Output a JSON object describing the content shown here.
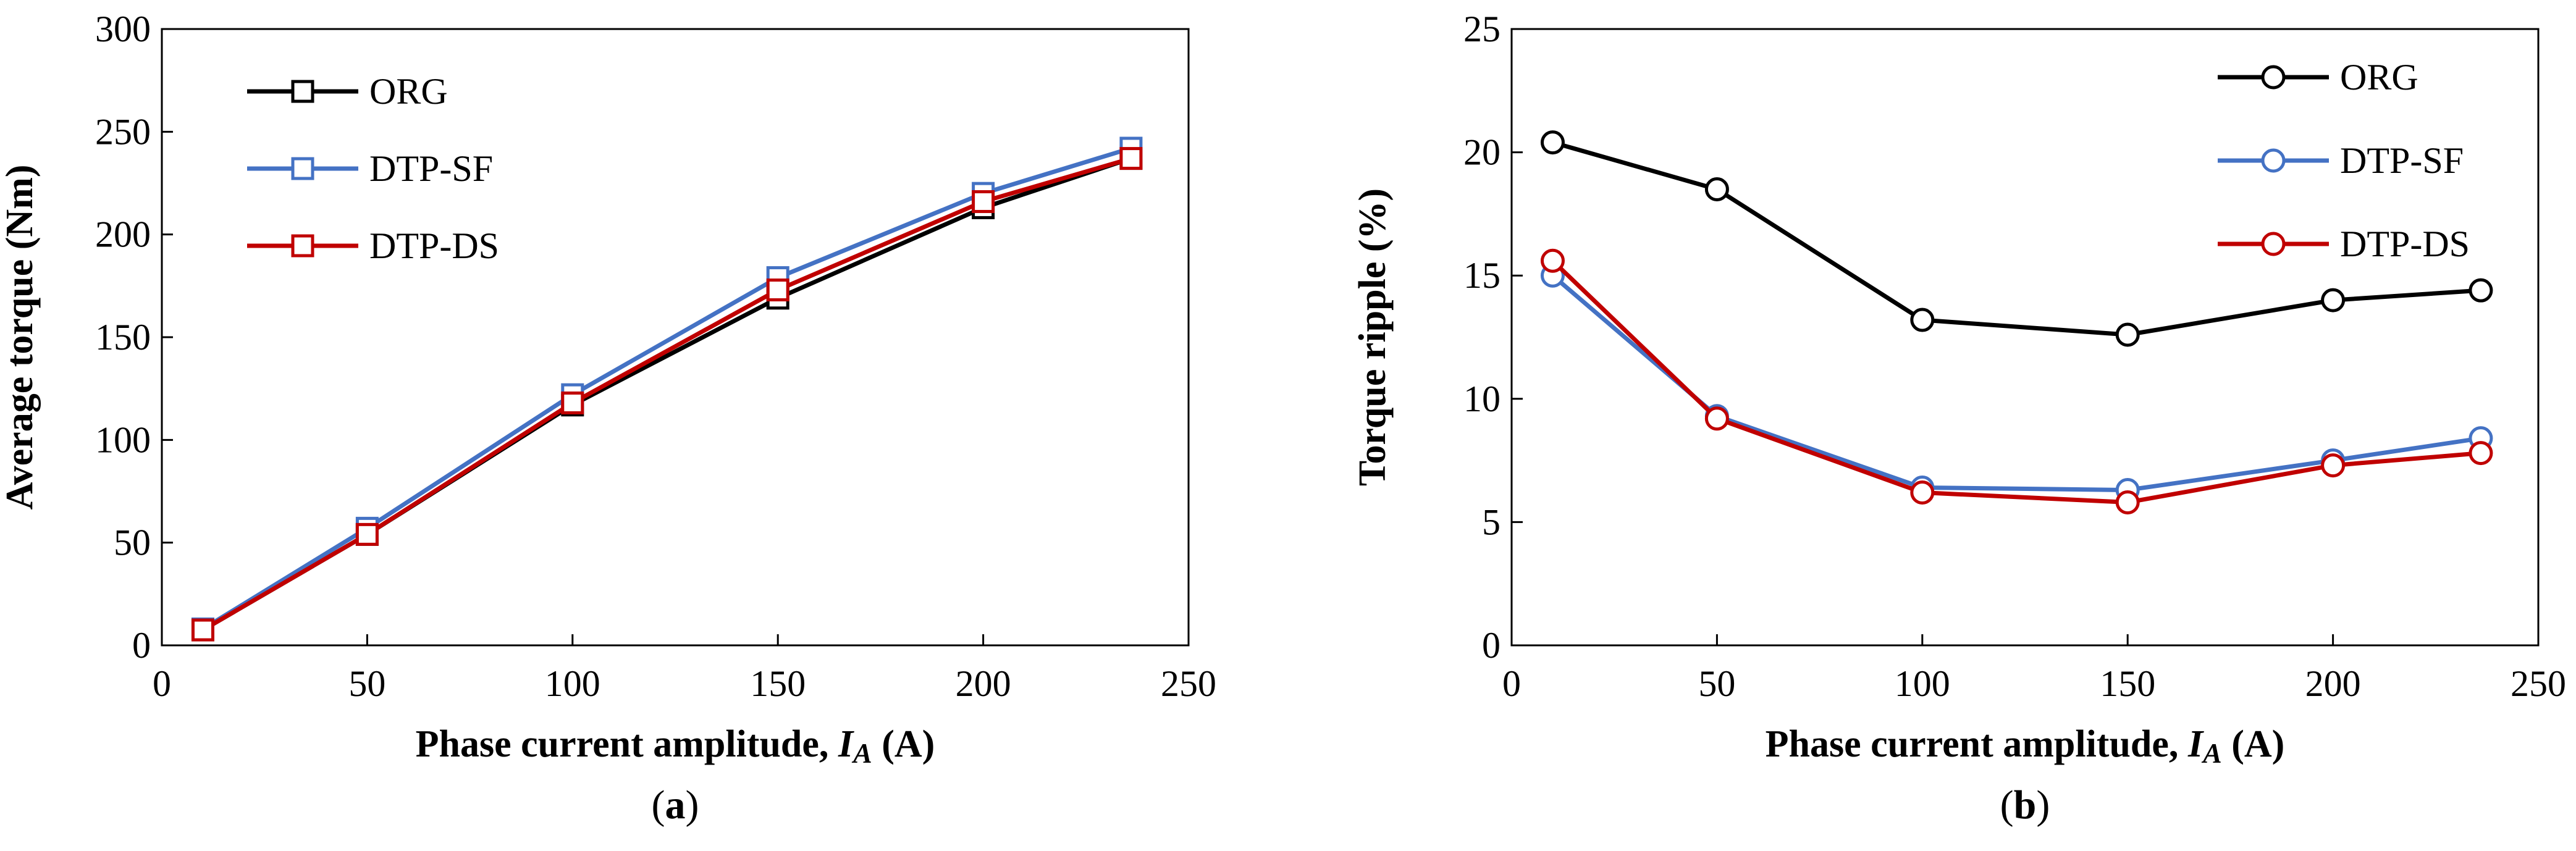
{
  "chart_data": [
    {
      "type": "line",
      "panel_label": "a",
      "title": "",
      "xlabel_prefix": "Phase current amplitude, ",
      "xlabel_var": "I",
      "xlabel_sub": "A",
      "xlabel_suffix": " (A)",
      "ylabel": "Average torque (Nm)",
      "xlim": [
        0,
        250
      ],
      "ylim": [
        0,
        300
      ],
      "xticks": [
        0,
        50,
        100,
        150,
        200,
        250
      ],
      "yticks": [
        0,
        50,
        100,
        150,
        200,
        250,
        300
      ],
      "grid": false,
      "legend_position": "top-left",
      "marker": "square",
      "x": [
        10,
        50,
        100,
        150,
        200,
        236
      ],
      "series": [
        {
          "name": "ORG",
          "color": "#000000",
          "values": [
            7.5,
            54,
            117,
            169,
            213,
            237
          ]
        },
        {
          "name": "DTP-SF",
          "color": "#4472C4",
          "values": [
            8,
            57,
            122,
            179,
            220,
            242
          ]
        },
        {
          "name": "DTP-DS",
          "color": "#C00000",
          "values": [
            7.5,
            54,
            118,
            173,
            216,
            237
          ]
        }
      ]
    },
    {
      "type": "line",
      "panel_label": "b",
      "title": "",
      "xlabel_prefix": "Phase current amplitude, ",
      "xlabel_var": "I",
      "xlabel_sub": "A",
      "xlabel_suffix": " (A)",
      "ylabel": "Torque ripple (%)",
      "xlim": [
        0,
        250
      ],
      "ylim": [
        0,
        25
      ],
      "xticks": [
        0,
        50,
        100,
        150,
        200,
        250
      ],
      "yticks": [
        0,
        5,
        10,
        15,
        20,
        25
      ],
      "grid": false,
      "legend_position": "top-right",
      "marker": "circle",
      "x": [
        10,
        50,
        100,
        150,
        200,
        236
      ],
      "series": [
        {
          "name": "ORG",
          "color": "#000000",
          "values": [
            20.4,
            18.5,
            13.2,
            12.6,
            14.0,
            14.4
          ]
        },
        {
          "name": "DTP-SF",
          "color": "#4472C4",
          "values": [
            15.0,
            9.3,
            6.4,
            6.3,
            7.5,
            8.4
          ]
        },
        {
          "name": "DTP-DS",
          "color": "#C00000",
          "values": [
            15.6,
            9.2,
            6.2,
            5.8,
            7.3,
            7.8
          ]
        }
      ]
    }
  ]
}
